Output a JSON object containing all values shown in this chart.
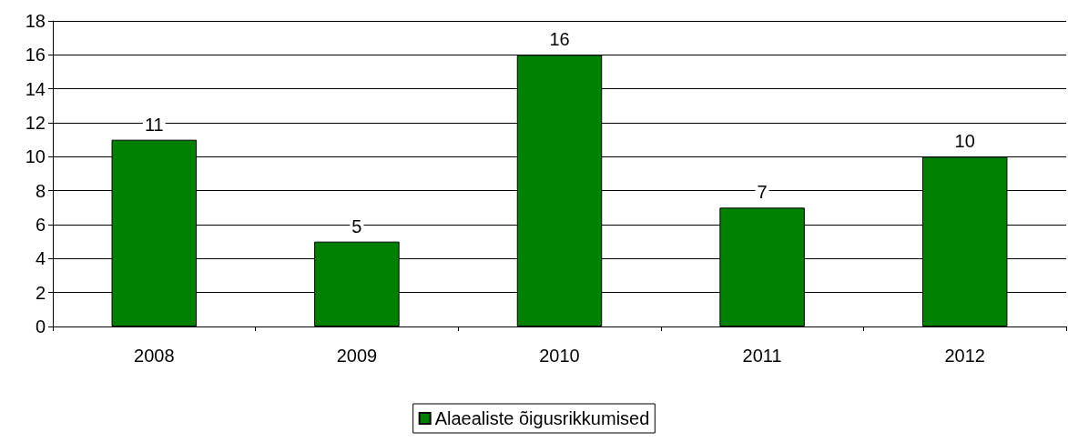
{
  "chart_data": {
    "type": "bar",
    "categories": [
      "2008",
      "2009",
      "2010",
      "2011",
      "2012"
    ],
    "series": [
      {
        "name": "Alaealiste õigusrikkumised",
        "color": "#008000",
        "values": [
          11,
          5,
          16,
          7,
          10
        ]
      }
    ],
    "ylim": [
      0,
      18
    ],
    "yticks": [
      0,
      2,
      4,
      6,
      8,
      10,
      12,
      14,
      16,
      18
    ],
    "grid": "y",
    "legend": "bottom",
    "data_labels": true
  }
}
